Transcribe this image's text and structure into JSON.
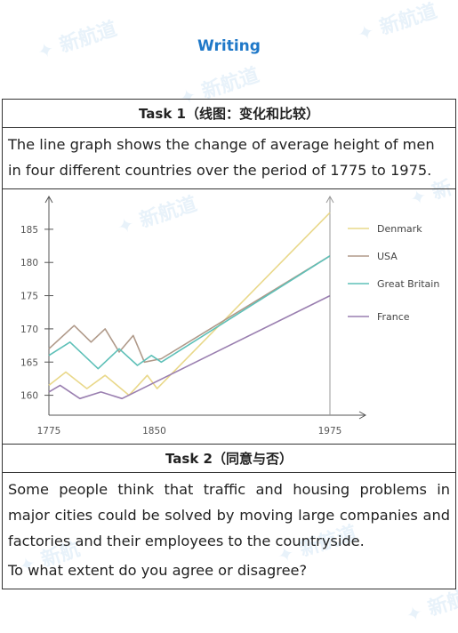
{
  "header": {
    "title": "Writing"
  },
  "watermark": {
    "text": "新航道 NEW CHANNEL"
  },
  "task1": {
    "heading": "Task 1（线图：变化和比较）",
    "prompt": "The line graph shows the change of average height of men in four different countries over the period of 1775 to 1975."
  },
  "task2": {
    "heading": "Task 2（同意与否）",
    "prompt": "Some people think that traffic and housing problems in major cities could be solved by moving large companies and factories and their employees to the countryside.",
    "question": "To what extent do you agree or disagree?"
  },
  "chart_data": {
    "type": "line",
    "title": "",
    "xlabel": "",
    "ylabel": "",
    "x_ticks": [
      1775,
      1850,
      1975
    ],
    "y_ticks": [
      160,
      165,
      170,
      175,
      180,
      185
    ],
    "xlim": [
      1775,
      1975
    ],
    "ylim": [
      157,
      189
    ],
    "grid": false,
    "legend_position": "right",
    "series": [
      {
        "name": "Denmark",
        "color": "#e9d88a",
        "x": [
          1775,
          1787,
          1802,
          1815,
          1832,
          1845,
          1852,
          1975
        ],
        "y": [
          161.5,
          163.5,
          161,
          163,
          160,
          163,
          161,
          187.5
        ]
      },
      {
        "name": "USA",
        "color": "#b09a8a",
        "x": [
          1775,
          1793,
          1805,
          1815,
          1825,
          1835,
          1843,
          1855,
          1975
        ],
        "y": [
          167,
          170.5,
          168,
          170,
          166.5,
          169,
          165,
          165.5,
          181
        ]
      },
      {
        "name": "Great Britain",
        "color": "#5ec0b8",
        "x": [
          1775,
          1790,
          1810,
          1825,
          1838,
          1848,
          1855,
          1975
        ],
        "y": [
          166,
          168,
          164,
          167,
          164.5,
          166,
          165,
          181
        ]
      },
      {
        "name": "France",
        "color": "#9a7fb0",
        "x": [
          1775,
          1783,
          1797,
          1812,
          1827,
          1975
        ],
        "y": [
          160.5,
          161.5,
          159.5,
          160.5,
          159.5,
          175
        ]
      }
    ]
  }
}
